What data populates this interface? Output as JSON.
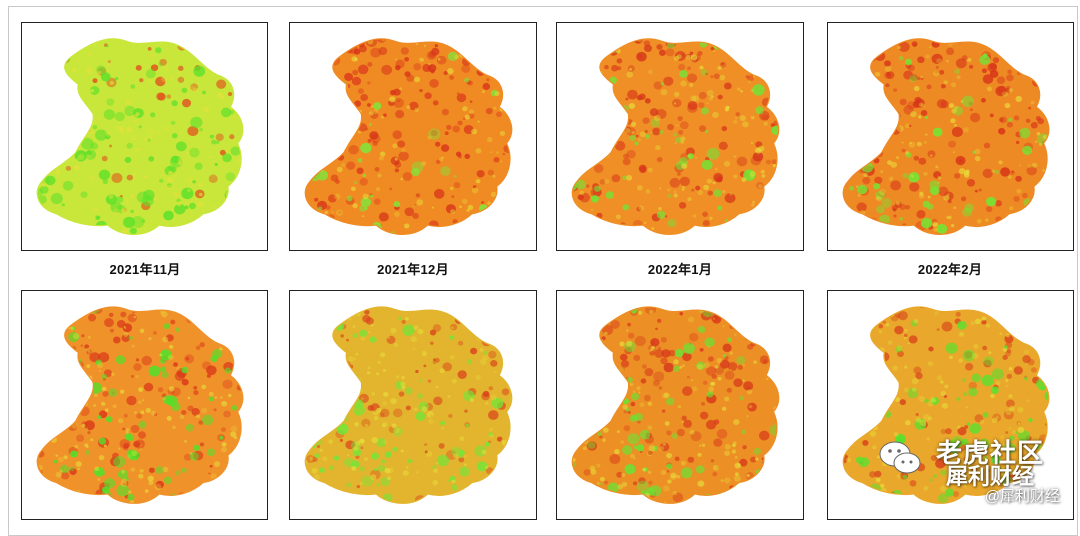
{
  "panels": [
    {
      "caption": "2021年11月",
      "base": "#c9e63a",
      "hot": "#e24a1c",
      "green": "#5fe12a",
      "heat": 0.25
    },
    {
      "caption": "2021年12月",
      "base": "#f08a22",
      "hot": "#d8341a",
      "green": "#7ee83a",
      "heat": 0.85
    },
    {
      "caption": "2022年1月",
      "base": "#ef8f26",
      "hot": "#d8381a",
      "green": "#6ee636",
      "heat": 0.75
    },
    {
      "caption": "2022年2月",
      "base": "#ee8a24",
      "hot": "#d83519",
      "green": "#72e633",
      "heat": 0.78
    },
    {
      "caption": "",
      "base": "#f0922a",
      "hot": "#da3a1a",
      "green": "#4fe22a",
      "heat": 0.65
    },
    {
      "caption": "",
      "base": "#e3b52e",
      "hot": "#d9441c",
      "green": "#6fe838",
      "heat": 0.5
    },
    {
      "caption": "",
      "base": "#ec8f25",
      "hot": "#d8391a",
      "green": "#66e534",
      "heat": 0.72
    },
    {
      "caption": "",
      "base": "#e9a82b",
      "hot": "#d8411b",
      "green": "#56e22e",
      "heat": 0.58
    }
  ],
  "watermark": {
    "line1": "老虎社区",
    "line2": "犀利财经",
    "line3": "@犀利财经",
    "icon": "wechat-icon"
  }
}
